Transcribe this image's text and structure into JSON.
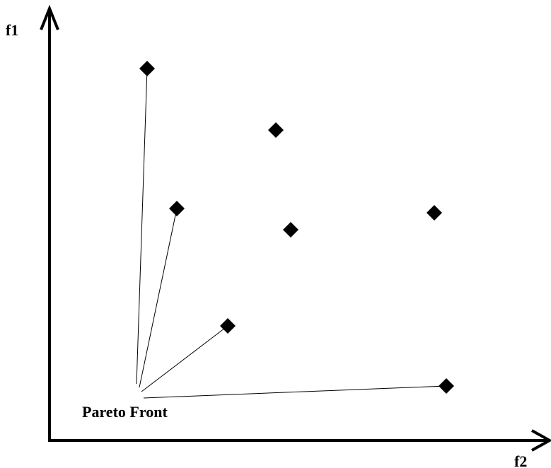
{
  "diagram": {
    "axes": {
      "y_label": "f1",
      "x_label": "f2"
    },
    "annotation": {
      "label": "Pareto Front"
    },
    "points": [
      {
        "id": "p1",
        "pareto": true
      },
      {
        "id": "p2",
        "pareto": true
      },
      {
        "id": "p3",
        "pareto": true
      },
      {
        "id": "p4",
        "pareto": true
      },
      {
        "id": "p5",
        "pareto": false
      },
      {
        "id": "p6",
        "pareto": false
      },
      {
        "id": "p7",
        "pareto": false
      }
    ],
    "colors": {
      "ink": "#000000",
      "background": "#ffffff"
    }
  }
}
